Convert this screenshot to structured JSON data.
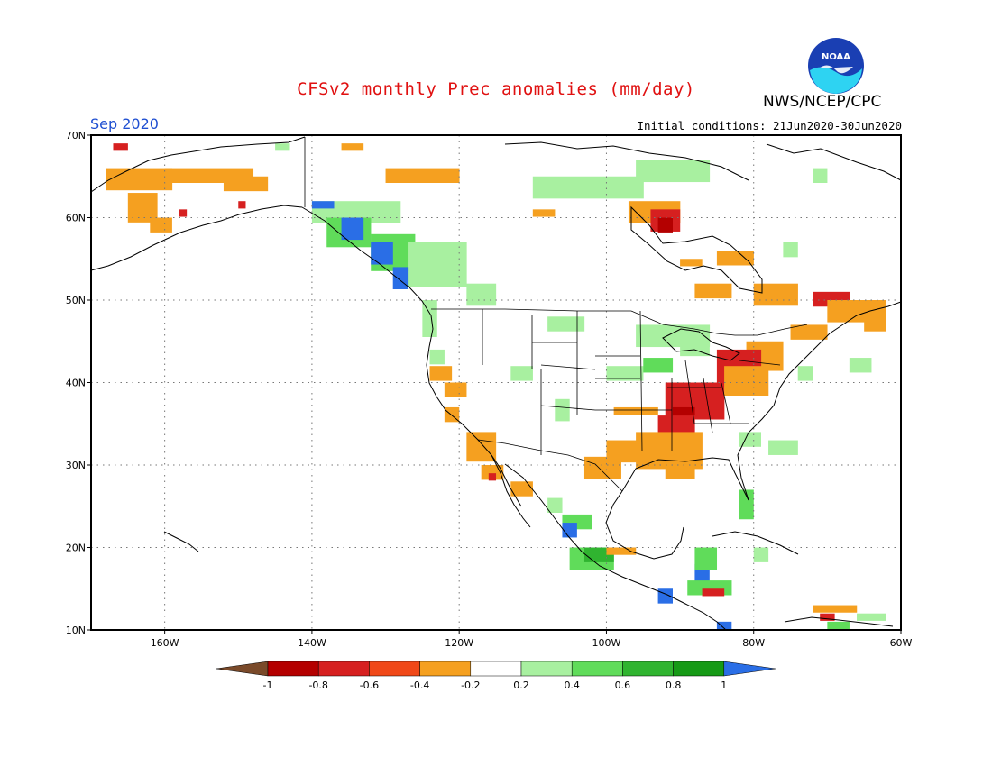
{
  "header": {
    "title": "CFSv2 monthly Prec anomalies (mm/day)",
    "agency": "NWS/NCEP/CPC",
    "logo_text": "NOAA",
    "month": "Sep 2020",
    "initial_conditions": "Initial conditions: 21Jun2020-30Jun2020"
  },
  "map": {
    "lon_range": [
      -170,
      -60
    ],
    "lat_range": [
      10,
      70
    ],
    "lat_labels": [
      "70N",
      "60N",
      "50N",
      "40N",
      "30N",
      "20N",
      "10N"
    ],
    "lon_labels": [
      "160W",
      "140W",
      "120W",
      "100W",
      "80W",
      "60W"
    ]
  },
  "legend": {
    "labels": [
      "-1",
      "-0.8",
      "-0.6",
      "-0.4",
      "-0.2",
      "0.2",
      "0.4",
      "0.6",
      "0.8",
      "1"
    ],
    "colors": [
      "#7a4a2a",
      "#b40000",
      "#d62020",
      "#f04818",
      "#f5a020",
      "#ffffff",
      "#a8f0a0",
      "#60dc5a",
      "#30b430",
      "#169a16",
      "#2a6ee6"
    ]
  }
}
